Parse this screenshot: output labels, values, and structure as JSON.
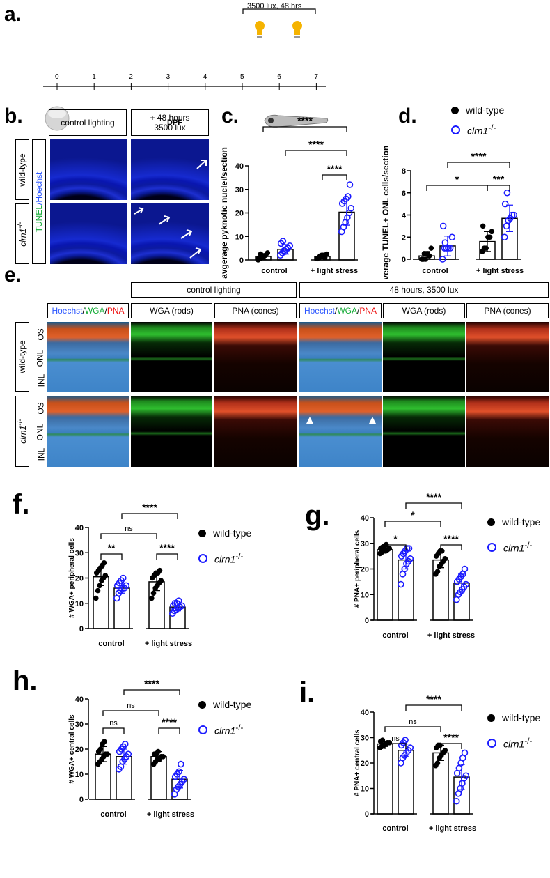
{
  "panel_labels": {
    "a": "a.",
    "b": "b.",
    "c": "c.",
    "d": "d.",
    "e": "e.",
    "f": "f.",
    "g": "g.",
    "h": "h.",
    "i": "i."
  },
  "timeline": {
    "ticks": [
      "0",
      "1",
      "2",
      "3",
      "4",
      "5",
      "6",
      "7"
    ],
    "axis_label": "DPF",
    "treatment": "3500 lux, 48 hrs",
    "icons": [
      "egg-icon",
      "lightbulb-icon",
      "lightbulb-icon",
      "zebrafish-larva-icon"
    ]
  },
  "genotypes": {
    "wt": "wild-type",
    "mut": "clrn1",
    "mut_sup": "-/-"
  },
  "panel_b": {
    "col1": "control lighting",
    "col2_line1": "+ 48 hours",
    "col2_line2": "3500 lux",
    "stain_a": "TUNEL",
    "stain_b": "/Hoechst"
  },
  "panel_e": {
    "group1": "control lighting",
    "group2": "48 hours, 3500 lux",
    "merge": [
      "Hoechst",
      "/",
      "WGA",
      "/",
      "PNA"
    ],
    "wga": "WGA (rods)",
    "pna": "PNA (cones)",
    "layers": [
      "OS",
      "ONL",
      "INL"
    ]
  },
  "colors": {
    "wt": "#000000",
    "mut": "#1a1aff",
    "hoechst": "#2a55ff",
    "wga": "#11aa33",
    "pna": "#ee1111"
  },
  "legend": {
    "wt": "wild-type",
    "mut": "clrn1",
    "mut_sup": "-/-"
  },
  "chart_data": [
    {
      "id": "c",
      "type": "bar",
      "ylabel": "avgerage pyknotic nuclei/section",
      "categories": [
        "control",
        "+ light stress"
      ],
      "ylim": [
        0,
        40
      ],
      "yticks": [
        "0",
        "10",
        "20",
        "30",
        "40"
      ],
      "series": [
        {
          "name": "wild-type",
          "values": [
            1.5,
            1.5
          ],
          "sd": [
            1.2,
            1.0
          ],
          "points": [
            [
              0,
              0.5,
              1,
              1.5,
              2,
              3,
              0.8,
              2.5,
              1
            ],
            [
              0.5,
              1,
              1.5,
              2,
              1,
              2.5,
              0.8,
              1.5,
              2
            ]
          ]
        },
        {
          "name": "clrn1-/-",
          "values": [
            4.5,
            20.3
          ],
          "sd": [
            2.0,
            5.5
          ],
          "points": [
            [
              2,
              3,
              4,
              4.5,
              5,
              6,
              7,
              8,
              3.5
            ],
            [
              12,
              14,
              16,
              18,
              20,
              22,
              24,
              25,
              26,
              27,
              32
            ]
          ]
        }
      ],
      "comparisons": [
        {
          "a": 0,
          "b": 3,
          "label": "****"
        },
        {
          "a": 1,
          "b": 3,
          "label": "****"
        },
        {
          "a": 2,
          "b": 3,
          "label": "****"
        }
      ]
    },
    {
      "id": "d",
      "type": "bar",
      "ylabel": "average TUNEL+ ONL cells/section",
      "categories": [
        "control",
        "+ light stress"
      ],
      "ylim": [
        0,
        8
      ],
      "yticks": [
        "0",
        "2",
        "4",
        "6",
        "8"
      ],
      "series": [
        {
          "name": "wild-type",
          "values": [
            0.3,
            1.6
          ],
          "sd": [
            0.4,
            0.9
          ],
          "points": [
            [
              0,
              0,
              0,
              0.5,
              0.3,
              1,
              0,
              0.5
            ],
            [
              0.7,
              1,
              1,
              2,
              2,
              2.5,
              3,
              1
            ]
          ]
        },
        {
          "name": "clrn1-/-",
          "values": [
            1.2,
            3.7
          ],
          "sd": [
            0.9,
            1.2
          ],
          "points": [
            [
              0,
              1,
              1,
              1,
              1,
              2,
              3,
              1.5
            ],
            [
              2,
              3,
              3.5,
              3.7,
              4,
              4,
              5,
              6
            ]
          ]
        }
      ],
      "comparisons": [
        {
          "a": 0,
          "b": 2,
          "label": "*"
        },
        {
          "a": 2,
          "b": 3,
          "label": "***"
        },
        {
          "a": 1,
          "b": 3,
          "label": "****"
        }
      ]
    },
    {
      "id": "f",
      "type": "bar",
      "ylabel": "# WGA+ peripheral cells",
      "categories": [
        "control",
        "+ light stress"
      ],
      "ylim": [
        0,
        40
      ],
      "yticks": [
        "0",
        "10",
        "20",
        "30",
        "40"
      ],
      "series": [
        {
          "name": "wild-type",
          "values": [
            20.5,
            18.5
          ],
          "sd": [
            3.5,
            3.5
          ],
          "points": [
            [
              12,
              15,
              17,
              19,
              20,
              21,
              22,
              23,
              24,
              25,
              26
            ],
            [
              12,
              14,
              16,
              17,
              18,
              19,
              20,
              21,
              22,
              22,
              23
            ]
          ]
        },
        {
          "name": "clrn1-/-",
          "values": [
            16,
            8.5
          ],
          "sd": [
            2,
            1.5
          ],
          "points": [
            [
              12,
              14,
              15,
              16,
              16,
              17,
              17,
              18,
              19,
              20
            ],
            [
              6,
              7,
              7.5,
              8,
              8.5,
              9,
              9,
              10,
              10,
              11
            ]
          ]
        }
      ],
      "comparisons": [
        {
          "a": 0,
          "b": 1,
          "label": "**"
        },
        {
          "a": 2,
          "b": 3,
          "label": "****"
        },
        {
          "a": 0,
          "b": 2,
          "label": "ns"
        },
        {
          "a": 1,
          "b": 3,
          "label": "****"
        }
      ]
    },
    {
      "id": "g",
      "type": "bar",
      "ylabel": "# PNA+ peripheral cells",
      "categories": [
        "control",
        "+ light stress"
      ],
      "ylim": [
        0,
        40
      ],
      "yticks": [
        "0",
        "10",
        "20",
        "30",
        "40"
      ],
      "series": [
        {
          "name": "wild-type",
          "values": [
            27.5,
            23.5
          ],
          "sd": [
            1.2,
            3
          ],
          "points": [
            [
              26,
              26.5,
              27,
              27,
              27.5,
              28,
              28,
              28.5,
              29,
              29.5
            ],
            [
              18,
              19,
              21,
              22,
              23,
              24,
              25,
              26,
              27,
              27
            ]
          ]
        },
        {
          "name": "clrn1-/-",
          "values": [
            23.5,
            14.5
          ],
          "sd": [
            3.5,
            3.5
          ],
          "points": [
            [
              14,
              18,
              20,
              22,
              23,
              24,
              25,
              26,
              27,
              28,
              28
            ],
            [
              8,
              10,
              11,
              12,
              13,
              14,
              15,
              16,
              17,
              18,
              20
            ]
          ]
        }
      ],
      "comparisons": [
        {
          "a": 0,
          "b": 1,
          "label": "*"
        },
        {
          "a": 2,
          "b": 3,
          "label": "****"
        },
        {
          "a": 0,
          "b": 2,
          "label": "*"
        },
        {
          "a": 1,
          "b": 3,
          "label": "****"
        }
      ]
    },
    {
      "id": "h",
      "type": "bar",
      "ylabel": "# WGA+ central cells",
      "categories": [
        "control",
        "+ light stress"
      ],
      "ylim": [
        0,
        40
      ],
      "yticks": [
        "0",
        "10",
        "20",
        "30",
        "40"
      ],
      "series": [
        {
          "name": "wild-type",
          "values": [
            18,
            17
          ],
          "sd": [
            3,
            2
          ],
          "points": [
            [
              14,
              15,
              16,
              17,
              18,
              18,
              19,
              20,
              22,
              23
            ],
            [
              14,
              15,
              16,
              16,
              17,
              17,
              18,
              18,
              19
            ]
          ]
        },
        {
          "name": "clrn1-/-",
          "values": [
            17,
            8
          ],
          "sd": [
            3,
            3.5
          ],
          "points": [
            [
              12,
              13,
              15,
              16,
              17,
              18,
              19,
              20,
              21,
              22
            ],
            [
              2,
              4,
              5,
              6,
              7,
              8,
              9,
              10,
              11,
              14
            ]
          ]
        }
      ],
      "comparisons": [
        {
          "a": 0,
          "b": 1,
          "label": "ns"
        },
        {
          "a": 2,
          "b": 3,
          "label": "****"
        },
        {
          "a": 0,
          "b": 2,
          "label": "ns"
        },
        {
          "a": 1,
          "b": 3,
          "label": "****"
        }
      ]
    },
    {
      "id": "i",
      "type": "bar",
      "ylabel": "# PNA+ central cells",
      "categories": [
        "control",
        "+ light stress"
      ],
      "ylim": [
        0,
        40
      ],
      "yticks": [
        "0",
        "10",
        "20",
        "30",
        "40"
      ],
      "series": [
        {
          "name": "wild-type",
          "values": [
            27.5,
            24
          ],
          "sd": [
            1,
            3
          ],
          "points": [
            [
              26,
              26.5,
              27,
              27.5,
              28,
              28,
              28.5,
              29
            ],
            [
              19,
              20,
              22,
              23,
              24,
              25,
              26,
              27,
              27
            ]
          ]
        },
        {
          "name": "clrn1-/-",
          "values": [
            25,
            14.5
          ],
          "sd": [
            2.5,
            5
          ],
          "points": [
            [
              20,
              22,
              23,
              24,
              25,
              26,
              27,
              28,
              29
            ],
            [
              5,
              8,
              10,
              12,
              14,
              15,
              16,
              18,
              20,
              22,
              24
            ]
          ]
        }
      ],
      "comparisons": [
        {
          "a": 0,
          "b": 1,
          "label": "ns"
        },
        {
          "a": 2,
          "b": 3,
          "label": "****"
        },
        {
          "a": 0,
          "b": 2,
          "label": "ns"
        },
        {
          "a": 1,
          "b": 3,
          "label": "****"
        }
      ]
    }
  ]
}
